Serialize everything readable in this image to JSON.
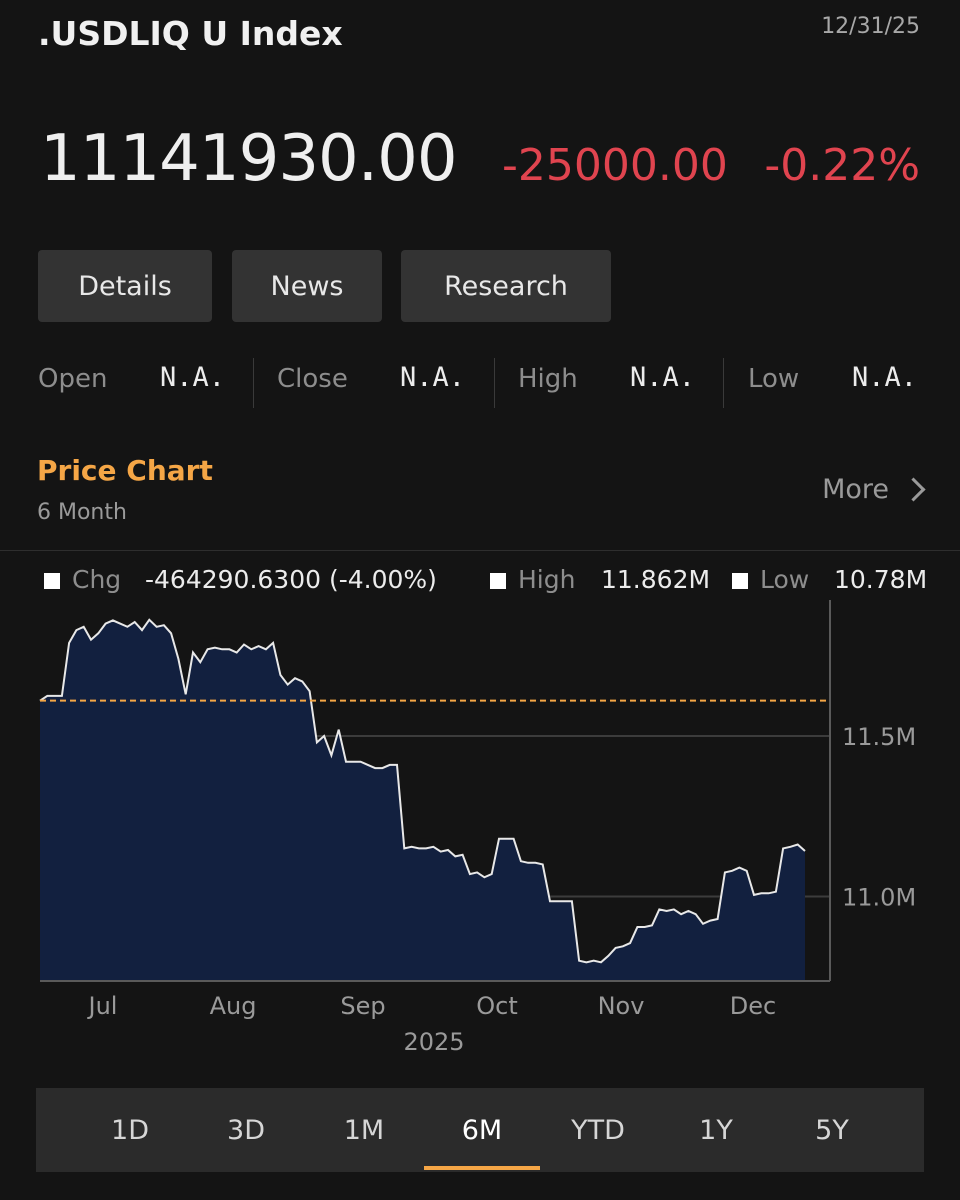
{
  "header": {
    "title": ".USDLIQ U Index",
    "date": "12/31/25",
    "price": "11141930.00",
    "change": "-25000.00",
    "change_pct": "-0.22%"
  },
  "tabs": [
    "Details",
    "News",
    "Research"
  ],
  "stats": [
    {
      "label": "Open",
      "value": "N.A."
    },
    {
      "label": "Close",
      "value": "N.A."
    },
    {
      "label": "High",
      "value": "N.A."
    },
    {
      "label": "Low",
      "value": "N.A."
    }
  ],
  "price_chart": {
    "title": "Price Chart",
    "subtitle": "6 Month",
    "more_label": "More"
  },
  "legend": {
    "chg_label": "Chg",
    "chg_value": "-464290.6300 (-4.00%)",
    "high_label": "High",
    "high_value": "11.862M",
    "low_label": "Low",
    "low_value": "10.78M"
  },
  "chart_data": {
    "type": "area",
    "x_ticks": [
      "Jul",
      "Aug",
      "Sep",
      "Oct",
      "Nov",
      "Dec"
    ],
    "x_year": "2025",
    "y_ticks": [
      "11.5M",
      "11.0M"
    ],
    "y_tick_values": [
      11500000,
      11000000
    ],
    "reference_line": 11610000,
    "series": [
      {
        "values": [
          11610000,
          11625000,
          11625000,
          11625000,
          11790000,
          11830000,
          11840000,
          11800000,
          11820000,
          11850000,
          11860000,
          11850000,
          11840000,
          11855000,
          11830000,
          11862000,
          11840000,
          11845000,
          11820000,
          11740000,
          11630000,
          11760000,
          11730000,
          11770000,
          11775000,
          11770000,
          11770000,
          11760000,
          11785000,
          11770000,
          11780000,
          11770000,
          11790000,
          11690000,
          11660000,
          11680000,
          11670000,
          11640000,
          11480000,
          11500000,
          11440000,
          11520000,
          11420000,
          11420000,
          11420000,
          11410000,
          11400000,
          11400000,
          11410000,
          11410000,
          11150000,
          11155000,
          11150000,
          11150000,
          11155000,
          11140000,
          11145000,
          11125000,
          11130000,
          11070000,
          11075000,
          11060000,
          11070000,
          11180000,
          11180000,
          11180000,
          11110000,
          11105000,
          11105000,
          11100000,
          10985000,
          10985000,
          10985000,
          10985000,
          10800000,
          10795000,
          10800000,
          10795000,
          10815000,
          10840000,
          10845000,
          10855000,
          10905000,
          10905000,
          10910000,
          10960000,
          10955000,
          10960000,
          10945000,
          10955000,
          10945000,
          10915000,
          10925000,
          10930000,
          11075000,
          11080000,
          11090000,
          11080000,
          11005000,
          11010000,
          11010000,
          11015000,
          11150000,
          11155000,
          11162000,
          11141930
        ]
      }
    ],
    "y_range": [
      10740000,
      11880000
    ],
    "colors": {
      "line": "#e8e8e8",
      "fill": "#12203f",
      "reference": "#f5a646"
    }
  },
  "ranges": [
    "1D",
    "3D",
    "1M",
    "6M",
    "YTD",
    "1Y",
    "5Y"
  ],
  "active_range": "6M"
}
